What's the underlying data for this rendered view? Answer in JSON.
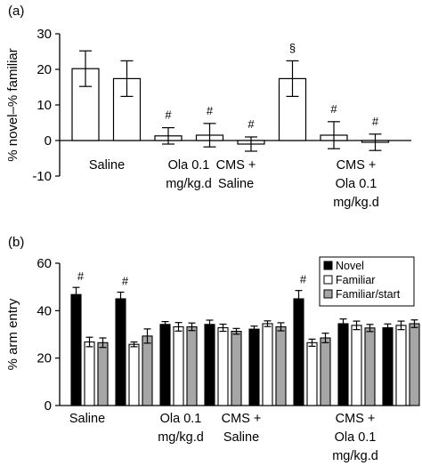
{
  "chart_data": [
    {
      "panel": "(a)",
      "type": "bar",
      "ylabel": "% novel–% familiar",
      "ylim": [
        -10,
        30
      ],
      "yticks": [
        -10,
        0,
        10,
        20,
        30
      ],
      "group_labels": [
        [
          "Saline"
        ],
        [
          "Ola 0.1",
          "mg/kg.d"
        ],
        [
          "CMS +",
          "Saline"
        ],
        [
          "CMS +",
          "Ola 0.1",
          "mg/kg.d"
        ]
      ],
      "bars": [
        {
          "value": 20.2,
          "err": 5.0,
          "mark": ""
        },
        {
          "value": 17.4,
          "err": 5.0,
          "mark": ""
        },
        {
          "value": 1.3,
          "err": 2.3,
          "mark": "#"
        },
        {
          "value": 1.5,
          "err": 3.3,
          "mark": "#"
        },
        {
          "value": -1.0,
          "err": 2.0,
          "mark": "#"
        },
        {
          "value": 17.4,
          "err": 5.0,
          "mark": "§"
        },
        {
          "value": 1.5,
          "err": 3.8,
          "mark": "#"
        },
        {
          "value": -0.5,
          "err": 2.3,
          "mark": "#"
        }
      ]
    },
    {
      "panel": "(b)",
      "type": "bar",
      "ylabel": "% arm entry",
      "ylim": [
        0,
        60
      ],
      "yticks": [
        0,
        20,
        40,
        60
      ],
      "group_labels": [
        [
          "Saline"
        ],
        [
          "Ola 0.1",
          "mg/kg.d"
        ],
        [
          "CMS +",
          "Saline"
        ],
        [
          "CMS +",
          "Ola 0.1",
          "mg/kg.d"
        ]
      ],
      "legend_position": "top-right",
      "series": [
        {
          "name": "Novel",
          "color": "#000000"
        },
        {
          "name": "Familiar",
          "color": "#ffffff"
        },
        {
          "name": "Familiar/start",
          "color": "#a6a6a6"
        }
      ],
      "clusters": [
        {
          "values": [
            46.8,
            26.8,
            26.5
          ],
          "errs": [
            3.0,
            2.0,
            2.0
          ],
          "mark": "#"
        },
        {
          "values": [
            45.0,
            25.8,
            29.3
          ],
          "errs": [
            2.8,
            1.0,
            3.0
          ],
          "mark": "#"
        },
        {
          "values": [
            34.2,
            33.2,
            33.2
          ],
          "errs": [
            1.2,
            1.8,
            1.6
          ],
          "mark": ""
        },
        {
          "values": [
            34.2,
            32.8,
            31.3
          ],
          "errs": [
            1.8,
            1.5,
            1.2
          ],
          "mark": ""
        },
        {
          "values": [
            32.2,
            34.5,
            33.2
          ],
          "errs": [
            1.3,
            1.2,
            1.7
          ],
          "mark": ""
        },
        {
          "values": [
            45.0,
            26.5,
            28.5
          ],
          "errs": [
            3.5,
            1.5,
            2.0
          ],
          "mark": "#"
        },
        {
          "values": [
            34.5,
            33.8,
            32.7
          ],
          "errs": [
            2.0,
            1.8,
            1.5
          ],
          "mark": ""
        },
        {
          "values": [
            32.8,
            33.8,
            34.5
          ],
          "errs": [
            1.6,
            1.8,
            1.6
          ],
          "mark": ""
        }
      ]
    }
  ]
}
